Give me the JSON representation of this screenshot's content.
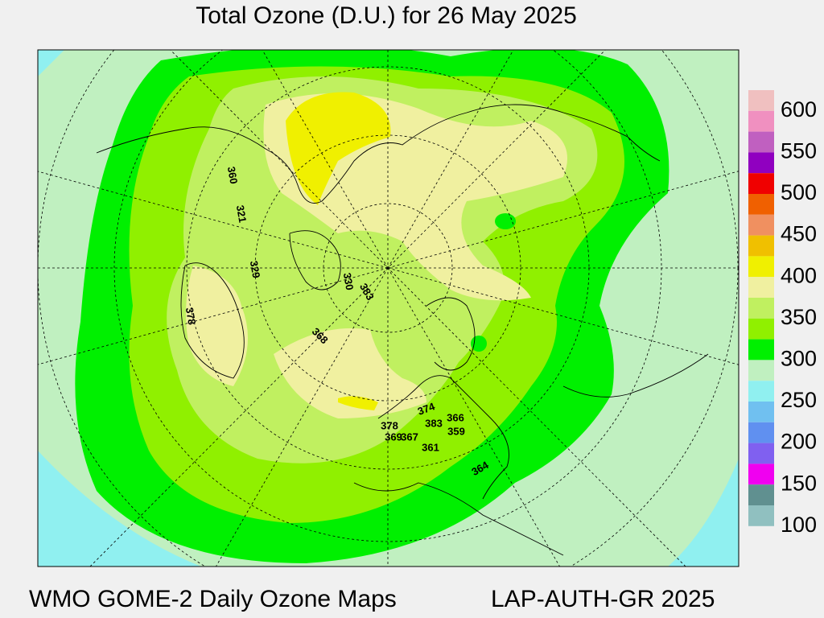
{
  "header": {
    "title": "Total Ozone (D.U.) for 26 May 2025"
  },
  "footer": {
    "left": "WMO GOME-2 Daily Ozone Maps",
    "right": "LAP-AUTH-GR 2025"
  },
  "legend": {
    "labels": [
      600,
      550,
      500,
      450,
      400,
      350,
      300,
      250,
      200,
      150,
      100
    ],
    "colors": [
      "#f0c0c0",
      "#f090c0",
      "#c060c0",
      "#9000c0",
      "#f00000",
      "#f06000",
      "#f09060",
      "#f0c000",
      "#f0f000",
      "#f0f0a0",
      "#c0f060",
      "#90f000",
      "#00f000",
      "#c0f0c0",
      "#90f0f0",
      "#70c0f0",
      "#6090f0",
      "#8060f0",
      "#f000f0",
      "#609090",
      "#90c0c0"
    ]
  },
  "stations": [
    "360",
    "321",
    "329",
    "378",
    "330",
    "383",
    "368",
    "374",
    "378",
    "383",
    "366",
    "369",
    "367",
    "359",
    "361",
    "364"
  ]
}
